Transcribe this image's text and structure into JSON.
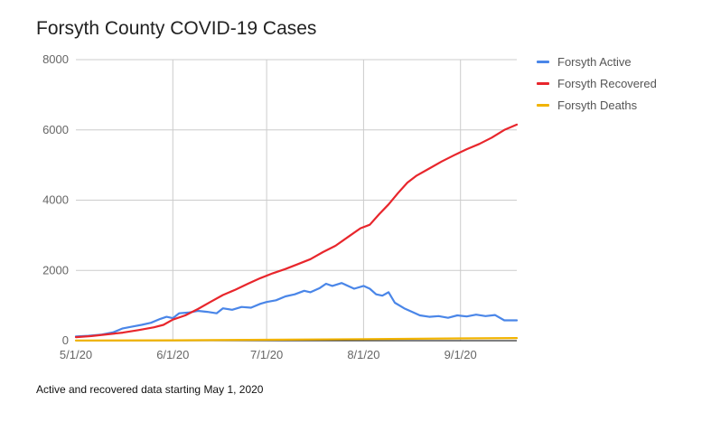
{
  "title": "Forsyth County COVID-19 Cases",
  "footnote": "Active and recovered data starting May 1, 2020",
  "chart_data": {
    "type": "line",
    "title": "Forsyth County COVID-19 Cases",
    "xlabel": "",
    "ylabel": "",
    "ylim": [
      0,
      8000
    ],
    "yticks": [
      0,
      2000,
      4000,
      6000,
      8000
    ],
    "ytick_labels": [
      "0",
      "2000",
      "4000",
      "6000",
      "8000"
    ],
    "xlim": [
      "2020-05-01",
      "2020-09-19"
    ],
    "xticks": [
      "2020-05-01",
      "2020-06-01",
      "2020-07-01",
      "2020-08-01",
      "2020-09-01"
    ],
    "xtick_labels": [
      "5/1/20",
      "6/1/20",
      "7/1/20",
      "8/1/20",
      "9/1/20"
    ],
    "grid": true,
    "legend_position": "right",
    "series": [
      {
        "name": "Forsyth Active",
        "color": "#4a86e8",
        "points": [
          [
            "2020-05-01",
            120
          ],
          [
            "2020-05-05",
            140
          ],
          [
            "2020-05-09",
            170
          ],
          [
            "2020-05-13",
            240
          ],
          [
            "2020-05-16",
            350
          ],
          [
            "2020-05-19",
            400
          ],
          [
            "2020-05-22",
            450
          ],
          [
            "2020-05-25",
            510
          ],
          [
            "2020-05-28",
            620
          ],
          [
            "2020-05-30",
            680
          ],
          [
            "2020-06-01",
            640
          ],
          [
            "2020-06-03",
            780
          ],
          [
            "2020-06-06",
            800
          ],
          [
            "2020-06-09",
            850
          ],
          [
            "2020-06-12",
            820
          ],
          [
            "2020-06-15",
            780
          ],
          [
            "2020-06-17",
            920
          ],
          [
            "2020-06-20",
            880
          ],
          [
            "2020-06-23",
            960
          ],
          [
            "2020-06-26",
            940
          ],
          [
            "2020-06-29",
            1050
          ],
          [
            "2020-07-01",
            1100
          ],
          [
            "2020-07-04",
            1150
          ],
          [
            "2020-07-07",
            1260
          ],
          [
            "2020-07-10",
            1320
          ],
          [
            "2020-07-13",
            1420
          ],
          [
            "2020-07-15",
            1380
          ],
          [
            "2020-07-18",
            1500
          ],
          [
            "2020-07-20",
            1620
          ],
          [
            "2020-07-22",
            1560
          ],
          [
            "2020-07-25",
            1640
          ],
          [
            "2020-07-27",
            1560
          ],
          [
            "2020-07-29",
            1480
          ],
          [
            "2020-08-01",
            1560
          ],
          [
            "2020-08-03",
            1480
          ],
          [
            "2020-08-05",
            1320
          ],
          [
            "2020-08-07",
            1280
          ],
          [
            "2020-08-09",
            1380
          ],
          [
            "2020-08-11",
            1080
          ],
          [
            "2020-08-14",
            920
          ],
          [
            "2020-08-17",
            800
          ],
          [
            "2020-08-19",
            720
          ],
          [
            "2020-08-22",
            680
          ],
          [
            "2020-08-25",
            700
          ],
          [
            "2020-08-28",
            650
          ],
          [
            "2020-08-31",
            720
          ],
          [
            "2020-09-03",
            690
          ],
          [
            "2020-09-06",
            740
          ],
          [
            "2020-09-09",
            700
          ],
          [
            "2020-09-12",
            730
          ],
          [
            "2020-09-15",
            580
          ],
          [
            "2020-09-19",
            580
          ]
        ]
      },
      {
        "name": "Forsyth Recovered",
        "color": "#e8262c",
        "points": [
          [
            "2020-05-01",
            100
          ],
          [
            "2020-05-06",
            130
          ],
          [
            "2020-05-11",
            180
          ],
          [
            "2020-05-16",
            230
          ],
          [
            "2020-05-21",
            300
          ],
          [
            "2020-05-26",
            380
          ],
          [
            "2020-05-29",
            450
          ],
          [
            "2020-06-01",
            600
          ],
          [
            "2020-06-05",
            720
          ],
          [
            "2020-06-09",
            900
          ],
          [
            "2020-06-13",
            1100
          ],
          [
            "2020-06-17",
            1300
          ],
          [
            "2020-06-21",
            1450
          ],
          [
            "2020-06-25",
            1620
          ],
          [
            "2020-06-29",
            1780
          ],
          [
            "2020-07-03",
            1920
          ],
          [
            "2020-07-07",
            2040
          ],
          [
            "2020-07-11",
            2180
          ],
          [
            "2020-07-15",
            2320
          ],
          [
            "2020-07-19",
            2520
          ],
          [
            "2020-07-23",
            2700
          ],
          [
            "2020-07-27",
            2950
          ],
          [
            "2020-07-31",
            3200
          ],
          [
            "2020-08-03",
            3300
          ],
          [
            "2020-08-06",
            3600
          ],
          [
            "2020-08-09",
            3880
          ],
          [
            "2020-08-12",
            4200
          ],
          [
            "2020-08-15",
            4500
          ],
          [
            "2020-08-18",
            4700
          ],
          [
            "2020-08-22",
            4900
          ],
          [
            "2020-08-26",
            5100
          ],
          [
            "2020-08-30",
            5280
          ],
          [
            "2020-09-03",
            5450
          ],
          [
            "2020-09-07",
            5600
          ],
          [
            "2020-09-11",
            5780
          ],
          [
            "2020-09-15",
            6000
          ],
          [
            "2020-09-19",
            6150
          ]
        ]
      },
      {
        "name": "Forsyth Deaths",
        "color": "#f1b300",
        "points": [
          [
            "2020-05-01",
            5
          ],
          [
            "2020-06-01",
            10
          ],
          [
            "2020-07-01",
            25
          ],
          [
            "2020-08-01",
            45
          ],
          [
            "2020-09-01",
            65
          ],
          [
            "2020-09-19",
            75
          ]
        ]
      }
    ]
  }
}
